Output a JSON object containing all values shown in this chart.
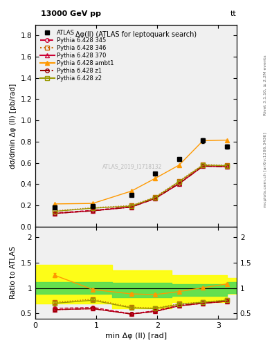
{
  "title_top": "13000 GeV pp",
  "title_top_right": "tt",
  "plot_title": "Δφ(ll) (ATLAS for leptoquark search)",
  "watermark": "ATLAS_2019_I1718132",
  "xlabel": "min Δφ (ll) [rad]",
  "ylabel": "dσ/dmin Δφ (ll) [pb/rad]",
  "ylabel_ratio": "Ratio to ATLAS",
  "right_label": "Rivet 3.1.10, ≥ 2.2M events",
  "right_label2": "mcplots.cern.ch [arXiv:1306.3436]",
  "x_data": [
    0.314,
    0.942,
    1.571,
    1.963,
    2.356,
    2.749,
    3.142
  ],
  "atlas_y": [
    0.185,
    0.195,
    0.3,
    0.5,
    0.635,
    0.81,
    0.755
  ],
  "atlas_yerr": [
    0.01,
    0.01,
    0.01,
    0.015,
    0.015,
    0.02,
    0.02
  ],
  "p345_y": [
    0.13,
    0.155,
    0.19,
    0.27,
    0.415,
    0.575,
    0.57
  ],
  "p346_y": [
    0.15,
    0.18,
    0.2,
    0.28,
    0.43,
    0.585,
    0.58
  ],
  "p370_y": [
    0.125,
    0.15,
    0.185,
    0.265,
    0.405,
    0.57,
    0.565
  ],
  "pambt1_y": [
    0.215,
    0.22,
    0.335,
    0.455,
    0.58,
    0.81,
    0.815
  ],
  "pz1_y": [
    0.125,
    0.15,
    0.185,
    0.265,
    0.405,
    0.57,
    0.565
  ],
  "pz2_y": [
    0.145,
    0.175,
    0.195,
    0.275,
    0.425,
    0.58,
    0.575
  ],
  "ratio_345": [
    0.6,
    0.62,
    0.495,
    0.555,
    0.66,
    0.71,
    0.745
  ],
  "ratio_346": [
    0.72,
    0.78,
    0.625,
    0.605,
    0.69,
    0.725,
    0.765
  ],
  "ratio_370": [
    0.575,
    0.595,
    0.49,
    0.54,
    0.65,
    0.7,
    0.738
  ],
  "ratio_ambt1": [
    1.25,
    0.97,
    0.885,
    0.87,
    0.93,
    1.005,
    1.08
  ],
  "ratio_z1": [
    0.575,
    0.595,
    0.49,
    0.54,
    0.65,
    0.7,
    0.738
  ],
  "ratio_z2": [
    0.7,
    0.76,
    0.61,
    0.595,
    0.68,
    0.72,
    0.76
  ],
  "ratio_yerr_345": [
    0.03,
    0.025,
    0.02,
    0.02,
    0.02,
    0.015,
    0.015
  ],
  "ratio_yerr_346": [
    0.03,
    0.025,
    0.02,
    0.02,
    0.02,
    0.015,
    0.015
  ],
  "ratio_yerr_370": [
    0.03,
    0.025,
    0.02,
    0.02,
    0.02,
    0.015,
    0.015
  ],
  "ratio_yerr_ambt1": [
    0.04,
    0.03,
    0.025,
    0.025,
    0.025,
    0.02,
    0.02
  ],
  "ratio_yerr_z1": [
    0.03,
    0.025,
    0.02,
    0.02,
    0.02,
    0.015,
    0.015
  ],
  "ratio_yerr_z2": [
    0.03,
    0.025,
    0.02,
    0.02,
    0.02,
    0.015,
    0.015
  ],
  "band_x_edges": [
    0.0,
    0.628,
    1.257,
    1.745,
    2.234,
    2.67,
    3.142,
    3.3
  ],
  "green_band_low": [
    0.88,
    0.88,
    0.82,
    0.82,
    0.85,
    0.85,
    0.9
  ],
  "green_band_high": [
    1.12,
    1.12,
    1.1,
    1.1,
    1.08,
    1.08,
    1.12
  ],
  "yellow_band_low": [
    0.7,
    0.7,
    0.6,
    0.6,
    0.72,
    0.72,
    0.88
  ],
  "yellow_band_high": [
    1.45,
    1.45,
    1.35,
    1.35,
    1.25,
    1.25,
    1.2
  ],
  "color_345": "#cc0033",
  "color_346": "#cc6600",
  "color_370": "#cc0033",
  "color_ambt1": "#ff9900",
  "color_z1": "#990000",
  "color_z2": "#999900",
  "color_atlas": "#000000",
  "ylim_main": [
    0.0,
    1.9
  ],
  "ylim_ratio": [
    0.4,
    2.2
  ],
  "xlim": [
    0.0,
    3.3
  ],
  "yticks_main": [
    0.0,
    0.2,
    0.4,
    0.6,
    0.8,
    1.0,
    1.2,
    1.4,
    1.6,
    1.8
  ],
  "yticks_ratio": [
    0.5,
    1.0,
    1.5,
    2.0
  ],
  "yticklabels_ratio": [
    "0.5",
    "1",
    "1.5",
    "2"
  ],
  "bg_color": "#f0f0f0"
}
